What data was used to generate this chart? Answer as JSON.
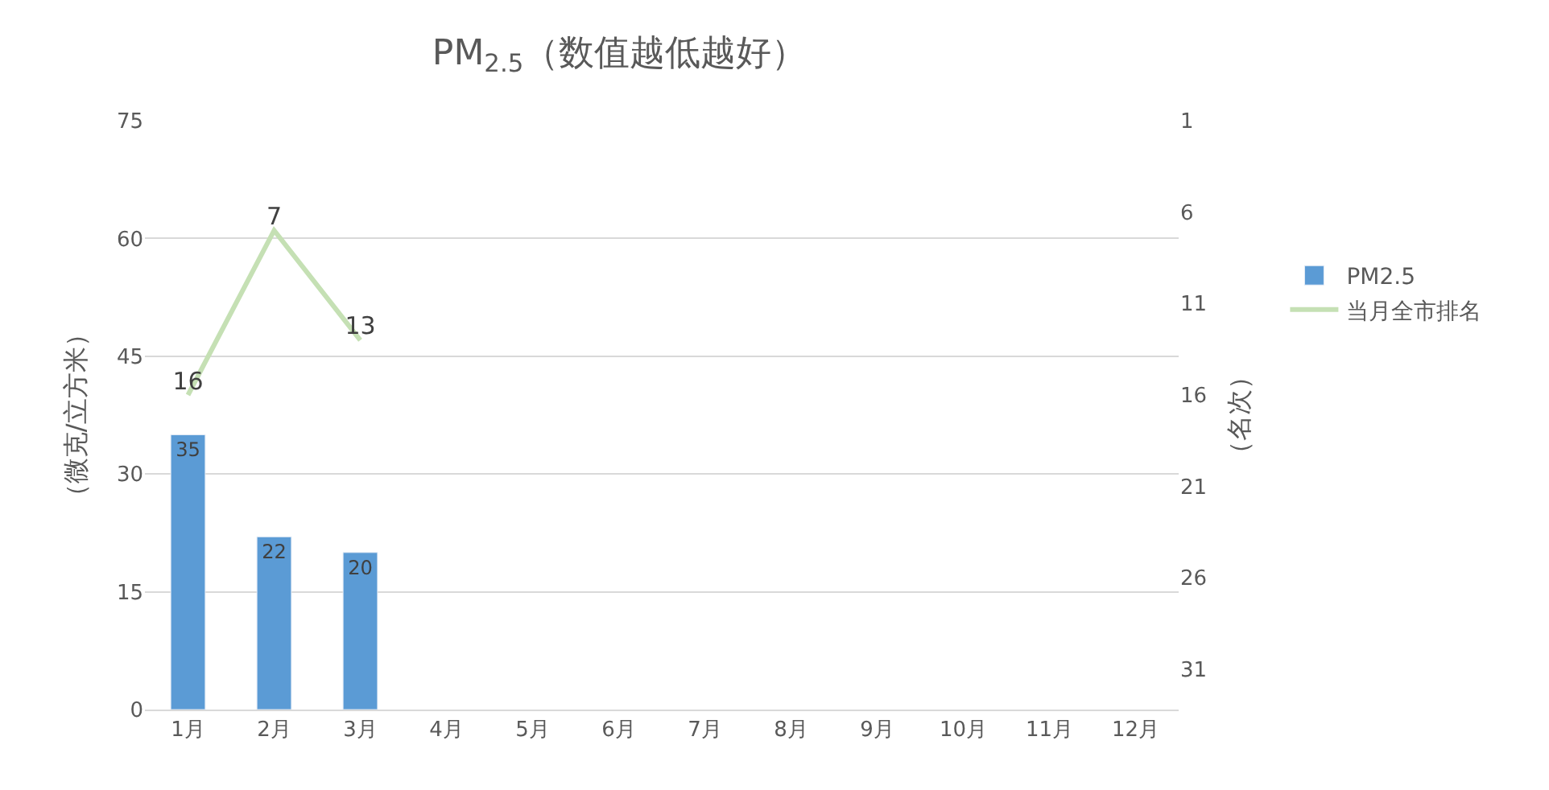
{
  "chart_data": {
    "type": "bar",
    "title": "PM$_{2.5}$（数值越低越好）",
    "ylabel": "（微克/立方米）",
    "y2label": "（名次）",
    "categories": [
      "1月",
      "2月",
      "3月",
      "4月",
      "5月",
      "6月",
      "7月",
      "8月",
      "9月",
      "10月",
      "11月",
      "12月"
    ],
    "series": [
      {
        "name": "PM2.5",
        "color": "#5b9bd5",
        "values": [
          35,
          22,
          20,
          null,
          null,
          null,
          null,
          null,
          null,
          null,
          null,
          null
        ]
      },
      {
        "name": "当月全市排名",
        "type": "line",
        "axis": "y2",
        "color": "#c5e0b4",
        "values": [
          16,
          7,
          13,
          null,
          null,
          null,
          null,
          null,
          null,
          null,
          null,
          null
        ]
      }
    ],
    "ylim": [
      0,
      75
    ],
    "yticks": [
      0,
      15,
      30,
      45,
      60,
      75
    ],
    "y2lim": [
      33.2,
      1
    ],
    "y2ticks": [
      1,
      6,
      11,
      16,
      21,
      26,
      31
    ],
    "grid": "y",
    "legend": "right",
    "data_labels": true,
    "marker": "none"
  }
}
